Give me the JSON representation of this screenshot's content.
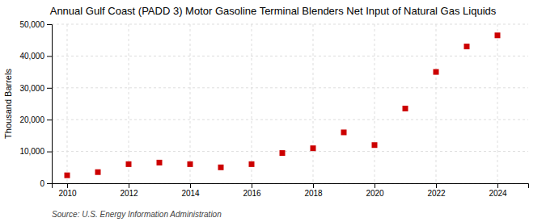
{
  "chart_data": {
    "type": "scatter",
    "title": "Annual Gulf Coast (PADD 3) Motor Gasoline Terminal Blenders Net Input of Natural Gas Liquids",
    "ylabel": "Thousand Barrels",
    "source": "Source: U.S. Energy Information Administration",
    "x": [
      2010,
      2011,
      2012,
      2013,
      2014,
      2015,
      2016,
      2017,
      2018,
      2019,
      2020,
      2021,
      2022,
      2023,
      2024
    ],
    "values": [
      2500,
      3500,
      6000,
      6500,
      6000,
      5000,
      6000,
      9500,
      11000,
      16000,
      12000,
      23500,
      35000,
      43000,
      46500
    ],
    "color": "#cc0000",
    "marker": "square",
    "xlim": [
      2009.5,
      2025.0
    ],
    "xticks": [
      2010,
      2012,
      2014,
      2016,
      2018,
      2020,
      2022,
      2024
    ],
    "ylim": [
      0,
      50000
    ],
    "yticks": [
      0,
      {
        "value": 10000,
        "label": "10,000"
      },
      {
        "value": 20000,
        "label": "20,000"
      },
      {
        "value": 30000,
        "label": "30,000"
      },
      {
        "value": 40000,
        "label": "40,000"
      },
      {
        "value": 50000,
        "label": "50,000"
      }
    ],
    "grid": true
  }
}
